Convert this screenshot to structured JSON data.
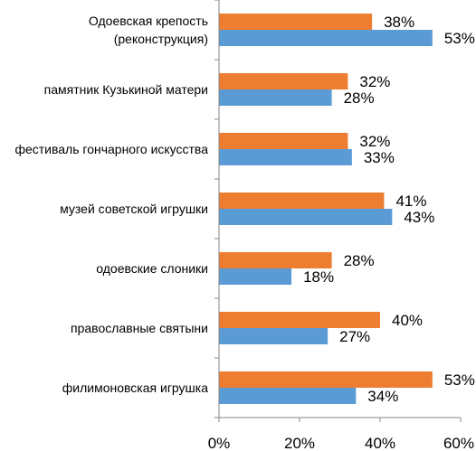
{
  "chart_data": {
    "type": "bar",
    "orientation": "horizontal",
    "categories": [
      [
        "Одоевская крепость",
        "(реконструкция)"
      ],
      [
        "памятник Кузькиной матери"
      ],
      [
        "фестиваль гончарного искусства"
      ],
      [
        "музей советской игрушки"
      ],
      [
        "одоевские слоники"
      ],
      [
        "православные святыни"
      ],
      [
        "филимоновская игрушка"
      ]
    ],
    "series": [
      {
        "color": "#ED7D31",
        "values": [
          38,
          32,
          32,
          41,
          28,
          40,
          53
        ],
        "labels": [
          "38%",
          "32%",
          "32%",
          "41%",
          "28%",
          "40%",
          "53%"
        ]
      },
      {
        "color": "#5B9BD5",
        "values": [
          53,
          28,
          33,
          43,
          18,
          27,
          34
        ],
        "labels": [
          "53%",
          "28%",
          "33%",
          "43%",
          "18%",
          "27%",
          "34%"
        ]
      }
    ],
    "xlim": [
      0,
      60
    ],
    "ticks": [
      "0%",
      "20%",
      "40%",
      "60%"
    ],
    "tick_values": [
      0,
      20,
      40,
      60
    ],
    "grid": false,
    "legend": "none",
    "title": "",
    "xlabel": "",
    "ylabel": ""
  }
}
